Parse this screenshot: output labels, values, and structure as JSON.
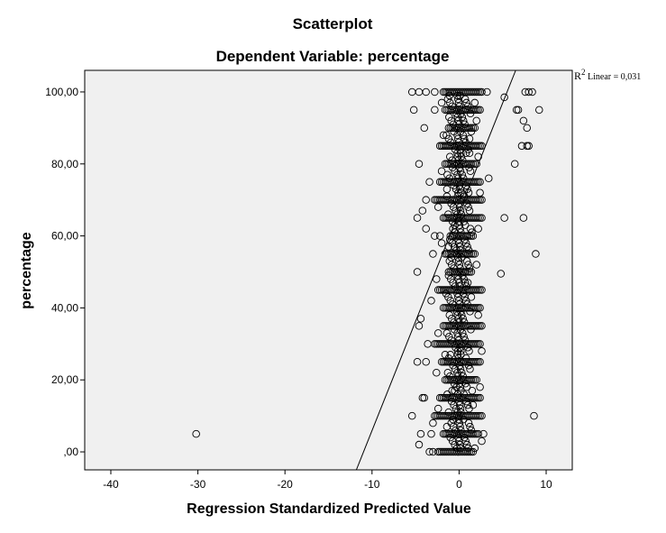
{
  "chart_data": {
    "type": "scatter",
    "title": "Scatterplot",
    "subtitle": "Dependent Variable: percentage",
    "xlabel": "Regression Standardized Predicted Value",
    "ylabel": "percentage",
    "xlim": [
      -43,
      13
    ],
    "ylim": [
      -5,
      106
    ],
    "xticks": [
      -40,
      -30,
      -20,
      -10,
      0,
      10
    ],
    "xtick_labels": [
      "-40",
      "-30",
      "-20",
      "-10",
      "0",
      "10"
    ],
    "yticks": [
      0,
      20,
      40,
      60,
      80,
      100
    ],
    "ytick_labels": [
      ",00",
      "20,00",
      "40,00",
      "60,00",
      "80,00",
      "100,00"
    ],
    "grid": false,
    "plot_background": "#f0f0f0",
    "marker_color": "#000000",
    "fit_line": {
      "type": "linear",
      "label_main": "R",
      "label_sup": "2",
      "label_rest": " Linear = 0,031",
      "points": [
        [
          -11.8,
          -5
        ],
        [
          6.5,
          106
        ]
      ]
    },
    "columns": [
      {
        "y": 100,
        "x_from": -1.8,
        "x_to": 2.6
      },
      {
        "y": 95,
        "x_from": -1.6,
        "x_to": 2.4
      },
      {
        "y": 90,
        "x_from": -1.2,
        "x_to": 1.8
      },
      {
        "y": 85,
        "x_from": -2.2,
        "x_to": 2.6
      },
      {
        "y": 80,
        "x_from": -1.6,
        "x_to": 2.0
      },
      {
        "y": 75,
        "x_from": -2.2,
        "x_to": 2.4
      },
      {
        "y": 70,
        "x_from": -2.8,
        "x_to": 2.6
      },
      {
        "y": 65,
        "x_from": -1.8,
        "x_to": 2.4
      },
      {
        "y": 60,
        "x_from": -1.0,
        "x_to": 1.6
      },
      {
        "y": 55,
        "x_from": -1.6,
        "x_to": 1.8
      },
      {
        "y": 50,
        "x_from": -1.2,
        "x_to": 1.4
      },
      {
        "y": 45,
        "x_from": -2.4,
        "x_to": 2.6
      },
      {
        "y": 40,
        "x_from": -1.8,
        "x_to": 2.4
      },
      {
        "y": 35,
        "x_from": -1.8,
        "x_to": 2.6
      },
      {
        "y": 30,
        "x_from": -2.8,
        "x_to": 2.4
      },
      {
        "y": 25,
        "x_from": -2.0,
        "x_to": 2.4
      },
      {
        "y": 20,
        "x_from": -1.6,
        "x_to": 2.0
      },
      {
        "y": 15,
        "x_from": -2.2,
        "x_to": 2.4
      },
      {
        "y": 10,
        "x_from": -2.8,
        "x_to": 2.6
      },
      {
        "y": 5,
        "x_from": -1.8,
        "x_to": 2.2
      },
      {
        "y": 0,
        "x_from": -2.4,
        "x_to": 1.6
      }
    ],
    "points": [
      {
        "x": -30.2,
        "y": 5
      },
      {
        "x": -5.4,
        "y": 100
      },
      {
        "x": -4.6,
        "y": 100
      },
      {
        "x": -3.8,
        "y": 100
      },
      {
        "x": -2.8,
        "y": 100
      },
      {
        "x": 3.2,
        "y": 100
      },
      {
        "x": 7.6,
        "y": 100
      },
      {
        "x": 8.0,
        "y": 100
      },
      {
        "x": 8.4,
        "y": 100
      },
      {
        "x": 5.2,
        "y": 98.5
      },
      {
        "x": -5.2,
        "y": 95
      },
      {
        "x": -2.8,
        "y": 95
      },
      {
        "x": 6.6,
        "y": 95
      },
      {
        "x": 6.8,
        "y": 95
      },
      {
        "x": 9.2,
        "y": 95
      },
      {
        "x": 7.4,
        "y": 92
      },
      {
        "x": -4.0,
        "y": 90
      },
      {
        "x": 7.8,
        "y": 90
      },
      {
        "x": 7.2,
        "y": 85
      },
      {
        "x": 7.8,
        "y": 85
      },
      {
        "x": 8.0,
        "y": 85
      },
      {
        "x": -4.6,
        "y": 80
      },
      {
        "x": 6.4,
        "y": 80
      },
      {
        "x": 3.4,
        "y": 76
      },
      {
        "x": -3.4,
        "y": 75
      },
      {
        "x": -3.8,
        "y": 70
      },
      {
        "x": -4.2,
        "y": 67
      },
      {
        "x": -4.8,
        "y": 65
      },
      {
        "x": 2.6,
        "y": 65
      },
      {
        "x": 5.2,
        "y": 65
      },
      {
        "x": 7.4,
        "y": 65
      },
      {
        "x": -3.8,
        "y": 62
      },
      {
        "x": -2.8,
        "y": 60
      },
      {
        "x": -2.2,
        "y": 60
      },
      {
        "x": -3.0,
        "y": 55
      },
      {
        "x": 8.8,
        "y": 55
      },
      {
        "x": -4.8,
        "y": 50
      },
      {
        "x": 4.8,
        "y": 49.5
      },
      {
        "x": -3.2,
        "y": 42
      },
      {
        "x": -4.4,
        "y": 37
      },
      {
        "x": -4.6,
        "y": 35
      },
      {
        "x": -3.6,
        "y": 30
      },
      {
        "x": -4.8,
        "y": 25
      },
      {
        "x": -3.8,
        "y": 25
      },
      {
        "x": -4.2,
        "y": 15
      },
      {
        "x": -4.0,
        "y": 15
      },
      {
        "x": -5.4,
        "y": 10
      },
      {
        "x": 8.6,
        "y": 10
      },
      {
        "x": -3.0,
        "y": 8
      },
      {
        "x": -4.4,
        "y": 5
      },
      {
        "x": -3.2,
        "y": 5
      },
      {
        "x": 2.8,
        "y": 5
      },
      {
        "x": -4.6,
        "y": 2
      },
      {
        "x": -3.4,
        "y": 0
      },
      {
        "x": -3.0,
        "y": 0
      },
      {
        "x": 1.8,
        "y": 1
      },
      {
        "x": 2.6,
        "y": 3
      },
      {
        "x": -2.4,
        "y": 12
      },
      {
        "x": 2.4,
        "y": 18
      },
      {
        "x": -2.6,
        "y": 22
      },
      {
        "x": 2.6,
        "y": 28
      },
      {
        "x": -2.4,
        "y": 33
      },
      {
        "x": 2.2,
        "y": 38
      },
      {
        "x": -2.6,
        "y": 48
      },
      {
        "x": 2.0,
        "y": 52
      },
      {
        "x": -2.0,
        "y": 58
      },
      {
        "x": 2.2,
        "y": 62
      },
      {
        "x": -2.4,
        "y": 68
      },
      {
        "x": 2.4,
        "y": 72
      },
      {
        "x": -2.0,
        "y": 78
      },
      {
        "x": 2.2,
        "y": 82
      },
      {
        "x": -1.8,
        "y": 88
      },
      {
        "x": 2.0,
        "y": 92
      },
      {
        "x": -2.0,
        "y": 97
      },
      {
        "x": 1.8,
        "y": 97
      },
      {
        "x": -1.2,
        "y": 57
      },
      {
        "x": 1.4,
        "y": 43
      },
      {
        "x": -1.6,
        "y": 27
      },
      {
        "x": 1.6,
        "y": 13
      },
      {
        "x": -1.4,
        "y": 7
      },
      {
        "x": 1.2,
        "y": 87
      },
      {
        "x": -1.4,
        "y": 73
      },
      {
        "x": 1.0,
        "y": 47
      },
      {
        "x": -0.8,
        "y": 17
      },
      {
        "x": 0.8,
        "y": 83
      }
    ]
  }
}
